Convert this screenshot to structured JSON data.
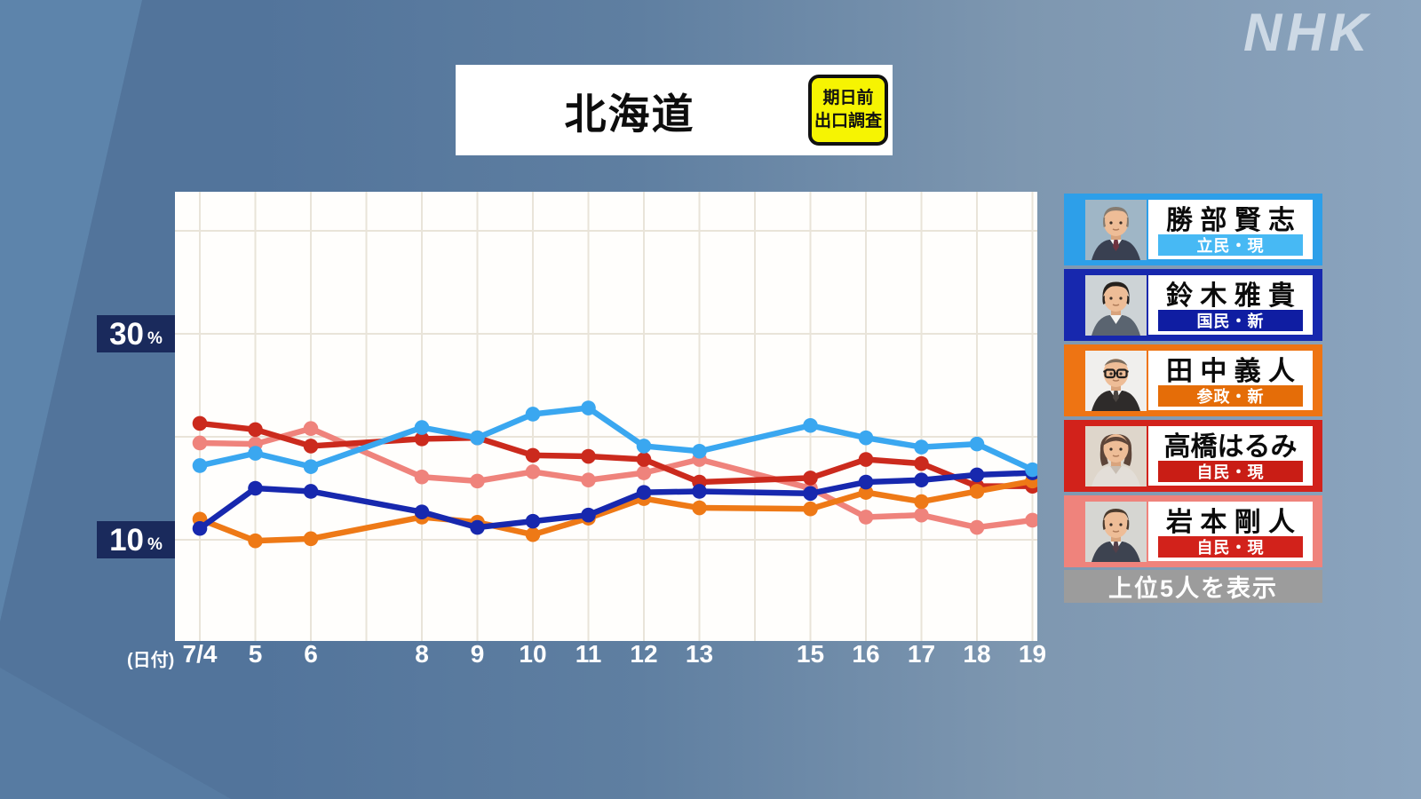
{
  "page": {
    "nhk_logo": "NHK"
  },
  "header": {
    "title": "北海道",
    "badge_line1": "期日前",
    "badge_line2": "出口調査"
  },
  "y_axis": {
    "ticks": [
      {
        "num": "30",
        "unit": "%"
      },
      {
        "num": "10",
        "unit": "%"
      }
    ]
  },
  "x_axis": {
    "heading": "(日付)"
  },
  "legend": {
    "footer": "上位5人を表示",
    "items": [
      {
        "name": "勝 部 賢 志",
        "party": "立民・現",
        "panel_color": "#2d9fe9",
        "tag_color": "#47b9f4",
        "photo": "older-man-gray-hair"
      },
      {
        "name": "鈴 木 雅 貴",
        "party": "国民・新",
        "panel_color": "#1728ae",
        "tag_color": "#0f1da2",
        "photo": "young-man-dark-hair"
      },
      {
        "name": "田 中 義 人",
        "party": "参政・新",
        "panel_color": "#ee7413",
        "tag_color": "#e56d08",
        "photo": "bald-man-glasses"
      },
      {
        "name": "高橋はるみ",
        "party": "自民・現",
        "panel_color": "#d2221b",
        "tag_color": "#c91d15",
        "photo": "woman-bob-hair"
      },
      {
        "name": "岩 本 剛 人",
        "party": "自民・現",
        "panel_color": "#ef837c",
        "tag_color": "#d2221b",
        "photo": "man-dark-hair"
      }
    ]
  },
  "chart_data": {
    "type": "line",
    "title": "北海道",
    "unit": "%",
    "x": [
      4,
      5,
      6,
      8,
      9,
      10,
      11,
      12,
      13,
      15,
      16,
      17,
      18,
      19
    ],
    "x_tick_labels": [
      "7/4",
      "5",
      "6",
      "8",
      "9",
      "10",
      "11",
      "12",
      "13",
      "15",
      "16",
      "17",
      "18",
      "19"
    ],
    "x_grid_days": [
      4,
      5,
      6,
      7,
      8,
      9,
      10,
      11,
      12,
      13,
      14,
      15,
      16,
      17,
      18,
      19
    ],
    "y_gridline_values": [
      40,
      30,
      20,
      10
    ],
    "y_tick_labels": [
      "30%",
      "10%"
    ],
    "ylim": [
      0,
      44
    ],
    "grid": true,
    "legend_position": "right",
    "series": [
      {
        "name": "勝部賢志",
        "party": "立民・現",
        "color": "#3aa7f0",
        "values": [
          17.2,
          18.4,
          17.1,
          20.9,
          19.9,
          22.2,
          22.8,
          19.1,
          18.6,
          21.1,
          19.9,
          19.0,
          19.3,
          16.8
        ]
      },
      {
        "name": "鈴木雅貴",
        "party": "国民・新",
        "color": "#1728ae",
        "values": [
          11.1,
          15.0,
          14.7,
          12.7,
          11.2,
          11.8,
          12.4,
          14.6,
          14.7,
          14.5,
          15.6,
          15.8,
          16.3,
          16.5
        ]
      },
      {
        "name": "田中義人",
        "party": "参政・新",
        "color": "#ee7916",
        "values": [
          12.0,
          9.9,
          10.1,
          12.2,
          11.7,
          10.5,
          12.1,
          14.0,
          13.1,
          13.0,
          14.6,
          13.7,
          14.7,
          15.7
        ]
      },
      {
        "name": "高橋はるみ",
        "party": "自民・現",
        "color": "#cb2a1d",
        "values": [
          21.3,
          20.7,
          19.1,
          19.8,
          19.9,
          18.2,
          18.1,
          17.8,
          15.6,
          16.0,
          17.8,
          17.4,
          15.2,
          15.2
        ]
      },
      {
        "name": "岩本剛人",
        "party": "自民・現",
        "color": "#ef837c",
        "values": [
          19.4,
          19.3,
          20.8,
          16.1,
          15.7,
          16.6,
          15.8,
          16.5,
          17.8,
          15.0,
          12.2,
          12.4,
          11.2,
          11.9
        ]
      }
    ],
    "draw_order": [
      4,
      3,
      2,
      1,
      0
    ]
  }
}
